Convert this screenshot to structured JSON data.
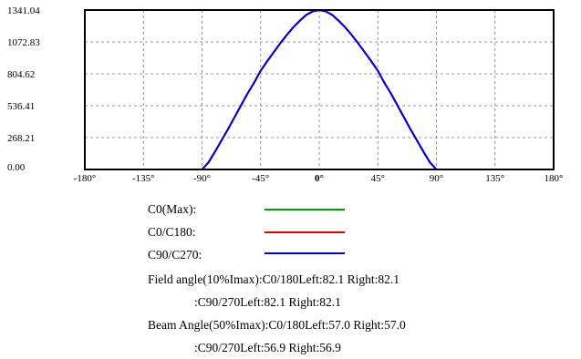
{
  "chart_data": {
    "type": "line",
    "title": "",
    "xlabel": "",
    "ylabel": "",
    "xlim": [
      -180,
      180
    ],
    "ylim": [
      0,
      1341.04
    ],
    "x_ticks": [
      -180,
      -135,
      -90,
      -45,
      0,
      45,
      90,
      135,
      180
    ],
    "x_tick_labels": [
      "-180°",
      "-135°",
      "-90°",
      "-45°",
      "0°",
      "45°",
      "90°",
      "135°",
      "180°"
    ],
    "y_ticks": [
      0,
      268.21,
      536.41,
      804.62,
      1072.83,
      1341.04
    ],
    "y_tick_labels": [
      "0.00",
      "268.21",
      "536.41",
      "804.62",
      "1072.83",
      "1341.04"
    ],
    "grid": true,
    "series": [
      {
        "name": "C0(Max):",
        "color": "#00a000",
        "x": [
          -180,
          -90,
          -85,
          -80,
          -75,
          -70,
          -65,
          -60,
          -55,
          -50,
          -45,
          -40,
          -35,
          -30,
          -25,
          -20,
          -15,
          -10,
          -5,
          0,
          5,
          10,
          15,
          20,
          25,
          30,
          35,
          40,
          45,
          50,
          55,
          60,
          65,
          70,
          75,
          80,
          85,
          90,
          180
        ],
        "y": [
          0,
          0,
          60,
          150,
          245,
          340,
          440,
          540,
          640,
          730,
          830,
          910,
          985,
          1060,
          1130,
          1195,
          1250,
          1300,
          1330,
          1341.04,
          1330,
          1300,
          1250,
          1195,
          1130,
          1060,
          985,
          910,
          830,
          730,
          640,
          540,
          440,
          340,
          245,
          150,
          60,
          0,
          0
        ]
      },
      {
        "name": "C0/C180:",
        "color": "#e00000",
        "x": [
          -180,
          -90,
          -85,
          -80,
          -75,
          -70,
          -65,
          -60,
          -55,
          -50,
          -45,
          -40,
          -35,
          -30,
          -25,
          -20,
          -15,
          -10,
          -5,
          0,
          5,
          10,
          15,
          20,
          25,
          30,
          35,
          40,
          45,
          50,
          55,
          60,
          65,
          70,
          75,
          80,
          85,
          90,
          180
        ],
        "y": [
          0,
          0,
          60,
          150,
          245,
          340,
          440,
          540,
          640,
          730,
          830,
          910,
          985,
          1060,
          1130,
          1195,
          1250,
          1300,
          1330,
          1341.04,
          1330,
          1300,
          1250,
          1195,
          1130,
          1060,
          985,
          910,
          830,
          730,
          640,
          540,
          440,
          340,
          245,
          150,
          60,
          0,
          0
        ]
      },
      {
        "name": "C90/C270:",
        "color": "#0000e0",
        "x": [
          -180,
          -90,
          -85,
          -80,
          -75,
          -70,
          -65,
          -60,
          -55,
          -50,
          -45,
          -40,
          -35,
          -30,
          -25,
          -20,
          -15,
          -10,
          -5,
          0,
          5,
          10,
          15,
          20,
          25,
          30,
          35,
          40,
          45,
          50,
          55,
          60,
          65,
          70,
          75,
          80,
          85,
          90,
          180
        ],
        "y": [
          0,
          0,
          60,
          150,
          245,
          340,
          440,
          540,
          640,
          730,
          830,
          910,
          985,
          1060,
          1130,
          1195,
          1250,
          1300,
          1330,
          1341.04,
          1330,
          1300,
          1250,
          1195,
          1130,
          1060,
          985,
          910,
          830,
          730,
          640,
          540,
          440,
          340,
          245,
          150,
          60,
          0,
          0
        ]
      }
    ]
  },
  "legend": {
    "items": [
      {
        "label": "C0(Max):",
        "color": "#00a000"
      },
      {
        "label": "C0/C180:",
        "color": "#e00000"
      },
      {
        "label": "C90/C270:",
        "color": "#0000e0"
      }
    ]
  },
  "info": {
    "field_line1": "Field angle(10%Imax):C0/180Left:82.1 Right:82.1",
    "field_line2": ":C90/270Left:82.1 Right:82.1",
    "beam_line1": "Beam Angle(50%Imax):C0/180Left:57.0 Right:57.0",
    "beam_line2": ":C90/270Left:56.9 Right:56.9"
  }
}
